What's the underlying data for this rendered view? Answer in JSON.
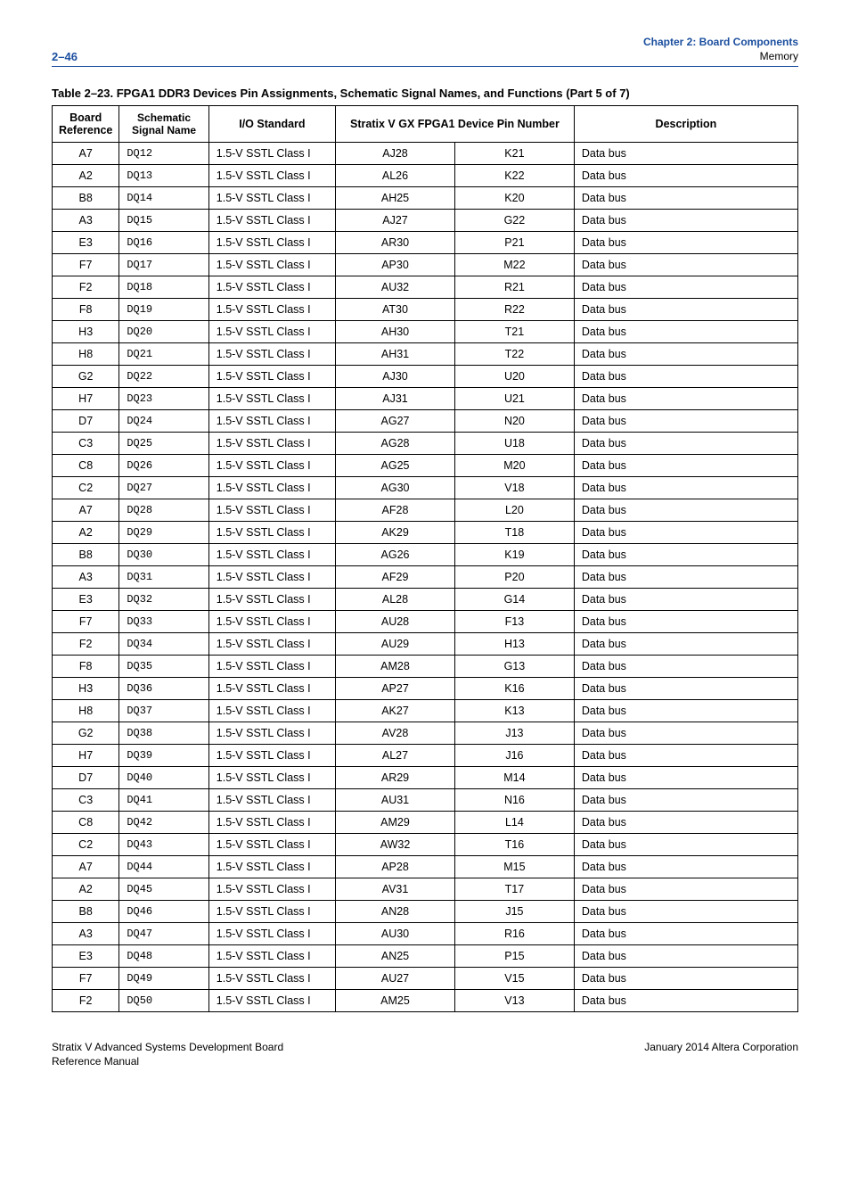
{
  "header": {
    "page_number": "2–46",
    "chapter_title": "Chapter 2:  Board Components",
    "chapter_subtitle": "Memory"
  },
  "table": {
    "caption": "Table 2–23.  FPGA1 DDR3 Devices Pin Assignments, Schematic Signal Names, and Functions  (Part 5 of 7)",
    "columns": {
      "board_ref": "Board Reference",
      "signal_name": "Schematic Signal Name",
      "io_standard": "I/O Standard",
      "pin_span": "Stratix V GX FPGA1 Device Pin Number",
      "description": "Description"
    },
    "rows": [
      {
        "b": "A7",
        "s": "DQ12",
        "io": "1.5-V SSTL Class I",
        "p1": "AJ28",
        "p2": "K21",
        "d": "Data bus"
      },
      {
        "b": "A2",
        "s": "DQ13",
        "io": "1.5-V SSTL Class I",
        "p1": "AL26",
        "p2": "K22",
        "d": "Data bus"
      },
      {
        "b": "B8",
        "s": "DQ14",
        "io": "1.5-V SSTL Class I",
        "p1": "AH25",
        "p2": "K20",
        "d": "Data bus"
      },
      {
        "b": "A3",
        "s": "DQ15",
        "io": "1.5-V SSTL Class I",
        "p1": "AJ27",
        "p2": "G22",
        "d": "Data bus"
      },
      {
        "b": "E3",
        "s": "DQ16",
        "io": "1.5-V SSTL Class I",
        "p1": "AR30",
        "p2": "P21",
        "d": "Data bus"
      },
      {
        "b": "F7",
        "s": "DQ17",
        "io": "1.5-V SSTL Class I",
        "p1": "AP30",
        "p2": "M22",
        "d": "Data bus"
      },
      {
        "b": "F2",
        "s": "DQ18",
        "io": "1.5-V SSTL Class I",
        "p1": "AU32",
        "p2": "R21",
        "d": "Data bus"
      },
      {
        "b": "F8",
        "s": "DQ19",
        "io": "1.5-V SSTL Class I",
        "p1": "AT30",
        "p2": "R22",
        "d": "Data bus"
      },
      {
        "b": "H3",
        "s": "DQ20",
        "io": "1.5-V SSTL Class I",
        "p1": "AH30",
        "p2": "T21",
        "d": "Data bus"
      },
      {
        "b": "H8",
        "s": "DQ21",
        "io": "1.5-V SSTL Class I",
        "p1": "AH31",
        "p2": "T22",
        "d": "Data bus"
      },
      {
        "b": "G2",
        "s": "DQ22",
        "io": "1.5-V SSTL Class I",
        "p1": "AJ30",
        "p2": "U20",
        "d": "Data bus"
      },
      {
        "b": "H7",
        "s": "DQ23",
        "io": "1.5-V SSTL Class I",
        "p1": "AJ31",
        "p2": "U21",
        "d": "Data bus"
      },
      {
        "b": "D7",
        "s": "DQ24",
        "io": "1.5-V SSTL Class I",
        "p1": "AG27",
        "p2": "N20",
        "d": "Data bus"
      },
      {
        "b": "C3",
        "s": "DQ25",
        "io": "1.5-V SSTL Class I",
        "p1": "AG28",
        "p2": "U18",
        "d": "Data bus"
      },
      {
        "b": "C8",
        "s": "DQ26",
        "io": "1.5-V SSTL Class I",
        "p1": "AG25",
        "p2": "M20",
        "d": "Data bus"
      },
      {
        "b": "C2",
        "s": "DQ27",
        "io": "1.5-V SSTL Class I",
        "p1": "AG30",
        "p2": "V18",
        "d": "Data bus"
      },
      {
        "b": "A7",
        "s": "DQ28",
        "io": "1.5-V SSTL Class I",
        "p1": "AF28",
        "p2": "L20",
        "d": "Data bus"
      },
      {
        "b": "A2",
        "s": "DQ29",
        "io": "1.5-V SSTL Class I",
        "p1": "AK29",
        "p2": "T18",
        "d": "Data bus"
      },
      {
        "b": "B8",
        "s": "DQ30",
        "io": "1.5-V SSTL Class I",
        "p1": "AG26",
        "p2": "K19",
        "d": "Data bus"
      },
      {
        "b": "A3",
        "s": "DQ31",
        "io": "1.5-V SSTL Class I",
        "p1": "AF29",
        "p2": "P20",
        "d": "Data bus"
      },
      {
        "b": "E3",
        "s": "DQ32",
        "io": "1.5-V SSTL Class I",
        "p1": "AL28",
        "p2": "G14",
        "d": "Data bus"
      },
      {
        "b": "F7",
        "s": "DQ33",
        "io": "1.5-V SSTL Class I",
        "p1": "AU28",
        "p2": "F13",
        "d": "Data bus"
      },
      {
        "b": "F2",
        "s": "DQ34",
        "io": "1.5-V SSTL Class I",
        "p1": "AU29",
        "p2": "H13",
        "d": "Data bus"
      },
      {
        "b": "F8",
        "s": "DQ35",
        "io": "1.5-V SSTL Class I",
        "p1": "AM28",
        "p2": "G13",
        "d": "Data bus"
      },
      {
        "b": "H3",
        "s": "DQ36",
        "io": "1.5-V SSTL Class I",
        "p1": "AP27",
        "p2": "K16",
        "d": "Data bus"
      },
      {
        "b": "H8",
        "s": "DQ37",
        "io": "1.5-V SSTL Class I",
        "p1": "AK27",
        "p2": "K13",
        "d": "Data bus"
      },
      {
        "b": "G2",
        "s": "DQ38",
        "io": "1.5-V SSTL Class I",
        "p1": "AV28",
        "p2": "J13",
        "d": "Data bus"
      },
      {
        "b": "H7",
        "s": "DQ39",
        "io": "1.5-V SSTL Class I",
        "p1": "AL27",
        "p2": "J16",
        "d": "Data bus"
      },
      {
        "b": "D7",
        "s": "DQ40",
        "io": "1.5-V SSTL Class I",
        "p1": "AR29",
        "p2": "M14",
        "d": "Data bus"
      },
      {
        "b": "C3",
        "s": "DQ41",
        "io": "1.5-V SSTL Class I",
        "p1": "AU31",
        "p2": "N16",
        "d": "Data bus"
      },
      {
        "b": "C8",
        "s": "DQ42",
        "io": "1.5-V SSTL Class I",
        "p1": "AM29",
        "p2": "L14",
        "d": "Data bus"
      },
      {
        "b": "C2",
        "s": "DQ43",
        "io": "1.5-V SSTL Class I",
        "p1": "AW32",
        "p2": "T16",
        "d": "Data bus"
      },
      {
        "b": "A7",
        "s": "DQ44",
        "io": "1.5-V SSTL Class I",
        "p1": "AP28",
        "p2": "M15",
        "d": "Data bus"
      },
      {
        "b": "A2",
        "s": "DQ45",
        "io": "1.5-V SSTL Class I",
        "p1": "AV31",
        "p2": "T17",
        "d": "Data bus"
      },
      {
        "b": "B8",
        "s": "DQ46",
        "io": "1.5-V SSTL Class I",
        "p1": "AN28",
        "p2": "J15",
        "d": "Data bus"
      },
      {
        "b": "A3",
        "s": "DQ47",
        "io": "1.5-V SSTL Class I",
        "p1": "AU30",
        "p2": "R16",
        "d": "Data bus"
      },
      {
        "b": "E3",
        "s": "DQ48",
        "io": "1.5-V SSTL Class I",
        "p1": "AN25",
        "p2": "P15",
        "d": "Data bus"
      },
      {
        "b": "F7",
        "s": "DQ49",
        "io": "1.5-V SSTL Class I",
        "p1": "AU27",
        "p2": "V15",
        "d": "Data bus"
      },
      {
        "b": "F2",
        "s": "DQ50",
        "io": "1.5-V SSTL Class I",
        "p1": "AM25",
        "p2": "V13",
        "d": "Data bus"
      }
    ]
  },
  "footer": {
    "left_line1": "Stratix V Advanced Systems Development Board",
    "left_line2": "Reference Manual",
    "right": "January 2014   Altera Corporation"
  },
  "style": {
    "rule_color": "#1a4e9e",
    "text_color": "#000000",
    "mono_font": "Courier New"
  }
}
